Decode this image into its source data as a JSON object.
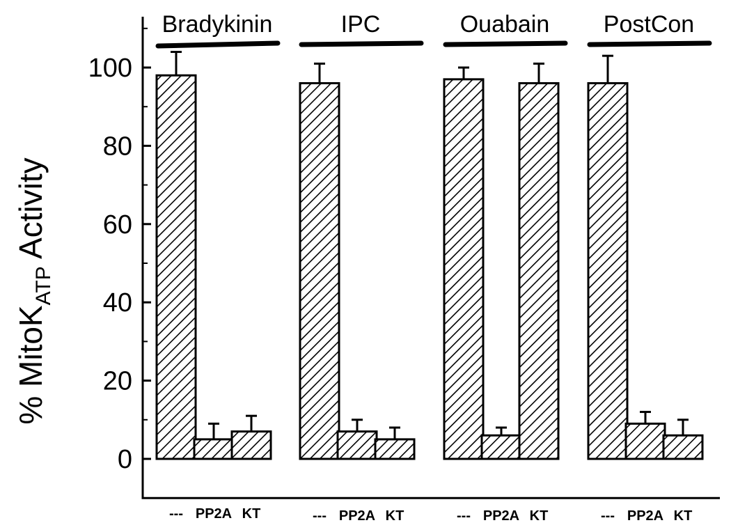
{
  "chart_data": {
    "type": "bar",
    "title": "",
    "xlabel": "",
    "ylabel": {
      "main": "% MitoK",
      "subscript": "ATP",
      "suffix": " Activity"
    },
    "ylim": [
      -10,
      113
    ],
    "yticks": [
      0,
      20,
      40,
      60,
      80,
      100
    ],
    "grid": false,
    "legend": "none",
    "bar_fill": "diagonal-hatch",
    "colors": {
      "bar_stroke": "#000000",
      "hatch": "#000000",
      "background": "#ffffff"
    },
    "groups": [
      {
        "label": "Bradykinin",
        "bars": [
          {
            "category": "---",
            "value": 98,
            "error": 6
          },
          {
            "category": "PP2A",
            "value": 5,
            "error": 4
          },
          {
            "category": "KT",
            "value": 7,
            "error": 4
          }
        ]
      },
      {
        "label": "IPC",
        "bars": [
          {
            "category": "---",
            "value": 96,
            "error": 5
          },
          {
            "category": "PP2A",
            "value": 7,
            "error": 3
          },
          {
            "category": "KT",
            "value": 5,
            "error": 3
          }
        ]
      },
      {
        "label": "Ouabain",
        "bars": [
          {
            "category": "---",
            "value": 97,
            "error": 3
          },
          {
            "category": "PP2A",
            "value": 6,
            "error": 2
          },
          {
            "category": "KT",
            "value": 96,
            "error": 5
          }
        ]
      },
      {
        "label": "PostCon",
        "bars": [
          {
            "category": "---",
            "value": 96,
            "error": 7
          },
          {
            "category": "PP2A",
            "value": 9,
            "error": 3
          },
          {
            "category": "KT",
            "value": 6,
            "error": 4
          }
        ]
      }
    ]
  }
}
